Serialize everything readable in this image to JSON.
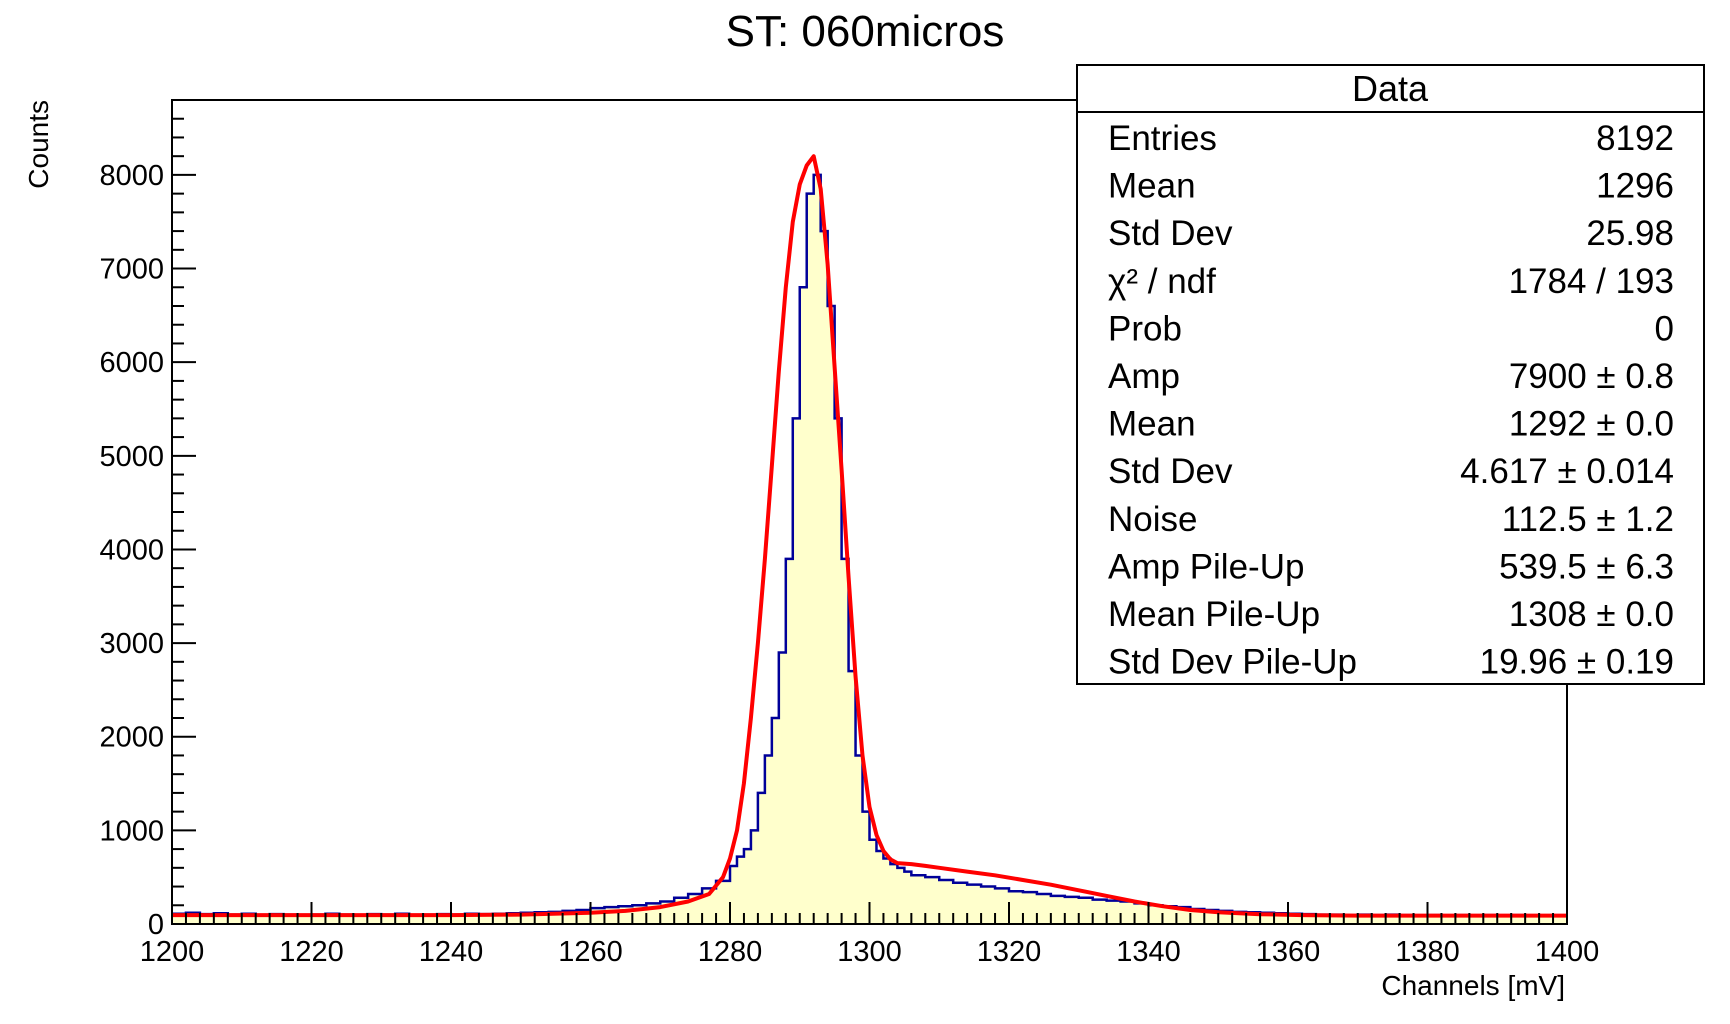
{
  "chart_data": {
    "type": "bar",
    "title": "ST: 060micros",
    "xlabel": "Channels [mV]",
    "ylabel": "Counts",
    "xlim": [
      1200,
      1400
    ],
    "ylim": [
      0,
      8800
    ],
    "xticks": [
      1200,
      1220,
      1240,
      1260,
      1280,
      1300,
      1320,
      1340,
      1360,
      1380,
      1400
    ],
    "yticks": [
      0,
      1000,
      2000,
      3000,
      4000,
      5000,
      6000,
      7000,
      8000
    ],
    "x_minor_step": 2,
    "y_minor_step": 200,
    "grid": false,
    "histogram": {
      "bin_width": 1,
      "x_start": 1200,
      "fill_color": "#ffffcc",
      "line_color": "#000099",
      "bins": [
        [
          1200,
          110
        ],
        [
          1202,
          120
        ],
        [
          1204,
          105
        ],
        [
          1206,
          115
        ],
        [
          1208,
          100
        ],
        [
          1210,
          110
        ],
        [
          1212,
          95
        ],
        [
          1214,
          105
        ],
        [
          1216,
          100
        ],
        [
          1218,
          95
        ],
        [
          1220,
          100
        ],
        [
          1222,
          110
        ],
        [
          1224,
          100
        ],
        [
          1226,
          95
        ],
        [
          1228,
          105
        ],
        [
          1230,
          100
        ],
        [
          1232,
          110
        ],
        [
          1234,
          95
        ],
        [
          1236,
          100
        ],
        [
          1238,
          105
        ],
        [
          1240,
          100
        ],
        [
          1242,
          110
        ],
        [
          1244,
          105
        ],
        [
          1246,
          110
        ],
        [
          1248,
          115
        ],
        [
          1250,
          120
        ],
        [
          1252,
          125
        ],
        [
          1254,
          130
        ],
        [
          1256,
          140
        ],
        [
          1258,
          150
        ],
        [
          1260,
          170
        ],
        [
          1262,
          180
        ],
        [
          1264,
          190
        ],
        [
          1266,
          200
        ],
        [
          1268,
          220
        ],
        [
          1270,
          240
        ],
        [
          1272,
          280
        ],
        [
          1274,
          320
        ],
        [
          1276,
          380
        ],
        [
          1278,
          460
        ],
        [
          1280,
          620
        ],
        [
          1281,
          720
        ],
        [
          1282,
          800
        ],
        [
          1283,
          1000
        ],
        [
          1284,
          1400
        ],
        [
          1285,
          1800
        ],
        [
          1286,
          2200
        ],
        [
          1287,
          2900
        ],
        [
          1288,
          3900
        ],
        [
          1289,
          5400
        ],
        [
          1290,
          6800
        ],
        [
          1291,
          7800
        ],
        [
          1292,
          8000
        ],
        [
          1293,
          7400
        ],
        [
          1294,
          6600
        ],
        [
          1295,
          5400
        ],
        [
          1296,
          3900
        ],
        [
          1297,
          2700
        ],
        [
          1298,
          1800
        ],
        [
          1299,
          1200
        ],
        [
          1300,
          900
        ],
        [
          1301,
          780
        ],
        [
          1302,
          700
        ],
        [
          1303,
          640
        ],
        [
          1304,
          600
        ],
        [
          1305,
          560
        ],
        [
          1306,
          520
        ],
        [
          1308,
          500
        ],
        [
          1310,
          470
        ],
        [
          1312,
          440
        ],
        [
          1314,
          420
        ],
        [
          1316,
          400
        ],
        [
          1318,
          380
        ],
        [
          1320,
          350
        ],
        [
          1322,
          340
        ],
        [
          1324,
          320
        ],
        [
          1326,
          300
        ],
        [
          1328,
          290
        ],
        [
          1330,
          280
        ],
        [
          1332,
          260
        ],
        [
          1334,
          250
        ],
        [
          1336,
          240
        ],
        [
          1338,
          220
        ],
        [
          1340,
          200
        ],
        [
          1342,
          190
        ],
        [
          1344,
          180
        ],
        [
          1346,
          160
        ],
        [
          1348,
          150
        ],
        [
          1350,
          140
        ],
        [
          1352,
          130
        ],
        [
          1354,
          125
        ],
        [
          1356,
          120
        ],
        [
          1358,
          115
        ],
        [
          1360,
          110
        ],
        [
          1362,
          105
        ],
        [
          1364,
          100
        ],
        [
          1366,
          100
        ],
        [
          1368,
          95
        ],
        [
          1370,
          100
        ],
        [
          1372,
          95
        ],
        [
          1374,
          100
        ],
        [
          1376,
          95
        ],
        [
          1378,
          90
        ],
        [
          1380,
          95
        ],
        [
          1382,
          90
        ],
        [
          1384,
          95
        ],
        [
          1386,
          90
        ],
        [
          1388,
          95
        ],
        [
          1390,
          90
        ],
        [
          1392,
          95
        ],
        [
          1394,
          85
        ],
        [
          1396,
          90
        ],
        [
          1398,
          85
        ]
      ]
    },
    "fit": {
      "line_color": "#ff0000",
      "points": [
        [
          1200,
          95
        ],
        [
          1220,
          95
        ],
        [
          1240,
          95
        ],
        [
          1250,
          100
        ],
        [
          1260,
          120
        ],
        [
          1265,
          140
        ],
        [
          1270,
          180
        ],
        [
          1274,
          240
        ],
        [
          1277,
          320
        ],
        [
          1279,
          500
        ],
        [
          1280,
          700
        ],
        [
          1281,
          1000
        ],
        [
          1282,
          1500
        ],
        [
          1283,
          2200
        ],
        [
          1284,
          3000
        ],
        [
          1285,
          3900
        ],
        [
          1286,
          4900
        ],
        [
          1287,
          5900
        ],
        [
          1288,
          6800
        ],
        [
          1289,
          7500
        ],
        [
          1290,
          7900
        ],
        [
          1291,
          8100
        ],
        [
          1292,
          8200
        ],
        [
          1293,
          7850
        ],
        [
          1294,
          7050
        ],
        [
          1295,
          5950
        ],
        [
          1296,
          4850
        ],
        [
          1297,
          3700
        ],
        [
          1298,
          2650
        ],
        [
          1299,
          1800
        ],
        [
          1300,
          1250
        ],
        [
          1301,
          950
        ],
        [
          1302,
          780
        ],
        [
          1303,
          690
        ],
        [
          1304,
          650
        ],
        [
          1306,
          640
        ],
        [
          1308,
          620
        ],
        [
          1310,
          600
        ],
        [
          1314,
          560
        ],
        [
          1318,
          520
        ],
        [
          1322,
          470
        ],
        [
          1326,
          420
        ],
        [
          1330,
          360
        ],
        [
          1334,
          300
        ],
        [
          1338,
          240
        ],
        [
          1342,
          190
        ],
        [
          1346,
          150
        ],
        [
          1350,
          125
        ],
        [
          1356,
          105
        ],
        [
          1362,
          95
        ],
        [
          1370,
          90
        ],
        [
          1380,
          90
        ],
        [
          1390,
          90
        ],
        [
          1400,
          90
        ]
      ]
    },
    "stats_box": {
      "title": "Data",
      "rows": [
        {
          "label": "Entries",
          "value": "8192"
        },
        {
          "label": "Mean",
          "value": "1296"
        },
        {
          "label": "Std Dev",
          "value": "25.98"
        },
        {
          "label": "χ² / ndf",
          "value": "1784 / 193"
        },
        {
          "label": "Prob",
          "value": "0"
        },
        {
          "label": "Amp",
          "value": "7900 ± 0.8"
        },
        {
          "label": "Mean",
          "value": "1292 ± 0.0"
        },
        {
          "label": "Std Dev",
          "value": "4.617 ± 0.014"
        },
        {
          "label": "Noise",
          "value": "112.5 ± 1.2"
        },
        {
          "label": "Amp Pile-Up",
          "value": "539.5 ± 6.3"
        },
        {
          "label": "Mean Pile-Up",
          "value": "1308 ± 0.0"
        },
        {
          "label": "Std Dev Pile-Up",
          "value": "19.96 ± 0.19"
        }
      ]
    }
  }
}
